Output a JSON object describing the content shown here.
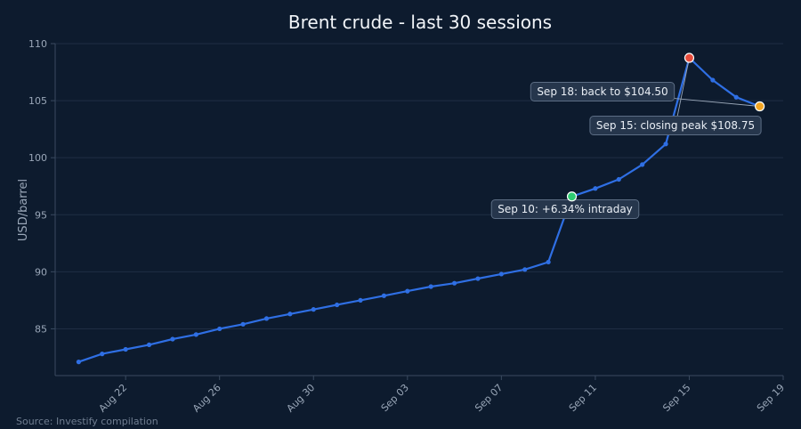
{
  "chart_data": {
    "type": "line",
    "title": "Brent crude - last 30 sessions",
    "xlabel": "",
    "ylabel": "USD/barrel",
    "source": "Source: Investify compilation",
    "ylim": [
      80.9,
      110
    ],
    "xlim": [
      "2025-08-19",
      "2025-09-19"
    ],
    "yticks": [
      85,
      90,
      95,
      100,
      105,
      110
    ],
    "xticks": [
      {
        "date": "2025-08-22",
        "label": "Aug 22"
      },
      {
        "date": "2025-08-26",
        "label": "Aug 26"
      },
      {
        "date": "2025-08-30",
        "label": "Aug 30"
      },
      {
        "date": "2025-09-03",
        "label": "Sep 03"
      },
      {
        "date": "2025-09-07",
        "label": "Sep 07"
      },
      {
        "date": "2025-09-11",
        "label": "Sep 11"
      },
      {
        "date": "2025-09-15",
        "label": "Sep 15"
      },
      {
        "date": "2025-09-19",
        "label": "Sep 19"
      }
    ],
    "grid": true,
    "series": [
      {
        "points": [
          [
            "2025-08-20",
            82.1
          ],
          [
            "2025-08-21",
            82.8
          ],
          [
            "2025-08-22",
            83.2
          ],
          [
            "2025-08-23",
            83.6
          ],
          [
            "2025-08-24",
            84.1
          ],
          [
            "2025-08-25",
            84.5
          ],
          [
            "2025-08-26",
            85.0
          ],
          [
            "2025-08-27",
            85.4
          ],
          [
            "2025-08-28",
            85.9
          ],
          [
            "2025-08-29",
            86.3
          ],
          [
            "2025-08-30",
            86.7
          ],
          [
            "2025-08-31",
            87.1
          ],
          [
            "2025-09-01",
            87.5
          ],
          [
            "2025-09-02",
            87.9
          ],
          [
            "2025-09-03",
            88.3
          ],
          [
            "2025-09-04",
            88.7
          ],
          [
            "2025-09-05",
            89.0
          ],
          [
            "2025-09-06",
            89.4
          ],
          [
            "2025-09-07",
            89.8
          ],
          [
            "2025-09-08",
            90.2
          ],
          [
            "2025-09-09",
            90.85
          ],
          [
            "2025-09-10",
            96.6
          ],
          [
            "2025-09-11",
            97.3
          ],
          [
            "2025-09-12",
            98.1
          ],
          [
            "2025-09-13",
            99.4
          ],
          [
            "2025-09-14",
            101.2
          ],
          [
            "2025-09-15",
            108.75
          ],
          [
            "2025-09-16",
            106.8
          ],
          [
            "2025-09-17",
            105.3
          ],
          [
            "2025-09-18",
            104.5
          ]
        ]
      }
    ],
    "highlights": [
      {
        "date": "2025-09-10",
        "value": 96.6,
        "color": "#2ecc71"
      },
      {
        "date": "2025-09-15",
        "value": 108.75,
        "color": "#e74c3c"
      },
      {
        "date": "2025-09-18",
        "value": 104.5,
        "color": "#f5a623"
      }
    ],
    "annotations": [
      {
        "text": "Sep 10: +6.34% intraday",
        "date": "2025-09-10",
        "value": 96.6
      },
      {
        "text": "Sep 15: closing peak $108.75",
        "date": "2025-09-15",
        "value": 108.75
      },
      {
        "text": "Sep 18: back to $104.50",
        "date": "2025-09-18",
        "value": 104.5
      }
    ],
    "colors": {
      "background": "#0d1b2e",
      "line": "#2f6fe4",
      "grid": "#1f2e44",
      "axis": "#3a4a60",
      "annotation_bg": "#26364c",
      "annotation_border": "#5c6d84"
    }
  }
}
